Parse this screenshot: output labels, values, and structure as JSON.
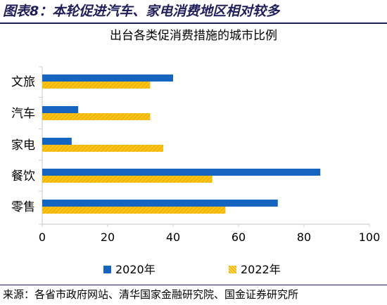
{
  "figure": {
    "title": "图表8：本轮促进汽车、家电消费地区相对较多",
    "source": "来源：各省市政府网站、清华国家金融研究院、国金证券研究所"
  },
  "colors": {
    "series_2020": "#1565c0",
    "series_2022": "#f5b800",
    "axis": "#d0d0d0",
    "header": "#1f1f5c"
  },
  "chart_data": {
    "type": "bar",
    "orientation": "horizontal",
    "title": "出台各类促消费措施的城市比例",
    "categories": [
      "文旅",
      "汽车",
      "家电",
      "餐饮",
      "零售"
    ],
    "series": [
      {
        "name": "2020年",
        "values": [
          40,
          11,
          9,
          85,
          72
        ]
      },
      {
        "name": "2022年",
        "values": [
          33,
          33,
          37,
          52,
          56
        ]
      }
    ],
    "xlim": [
      0,
      100
    ],
    "xticks": [
      0,
      20,
      40,
      60,
      80,
      100
    ],
    "grid": false,
    "legend_position": "bottom"
  }
}
